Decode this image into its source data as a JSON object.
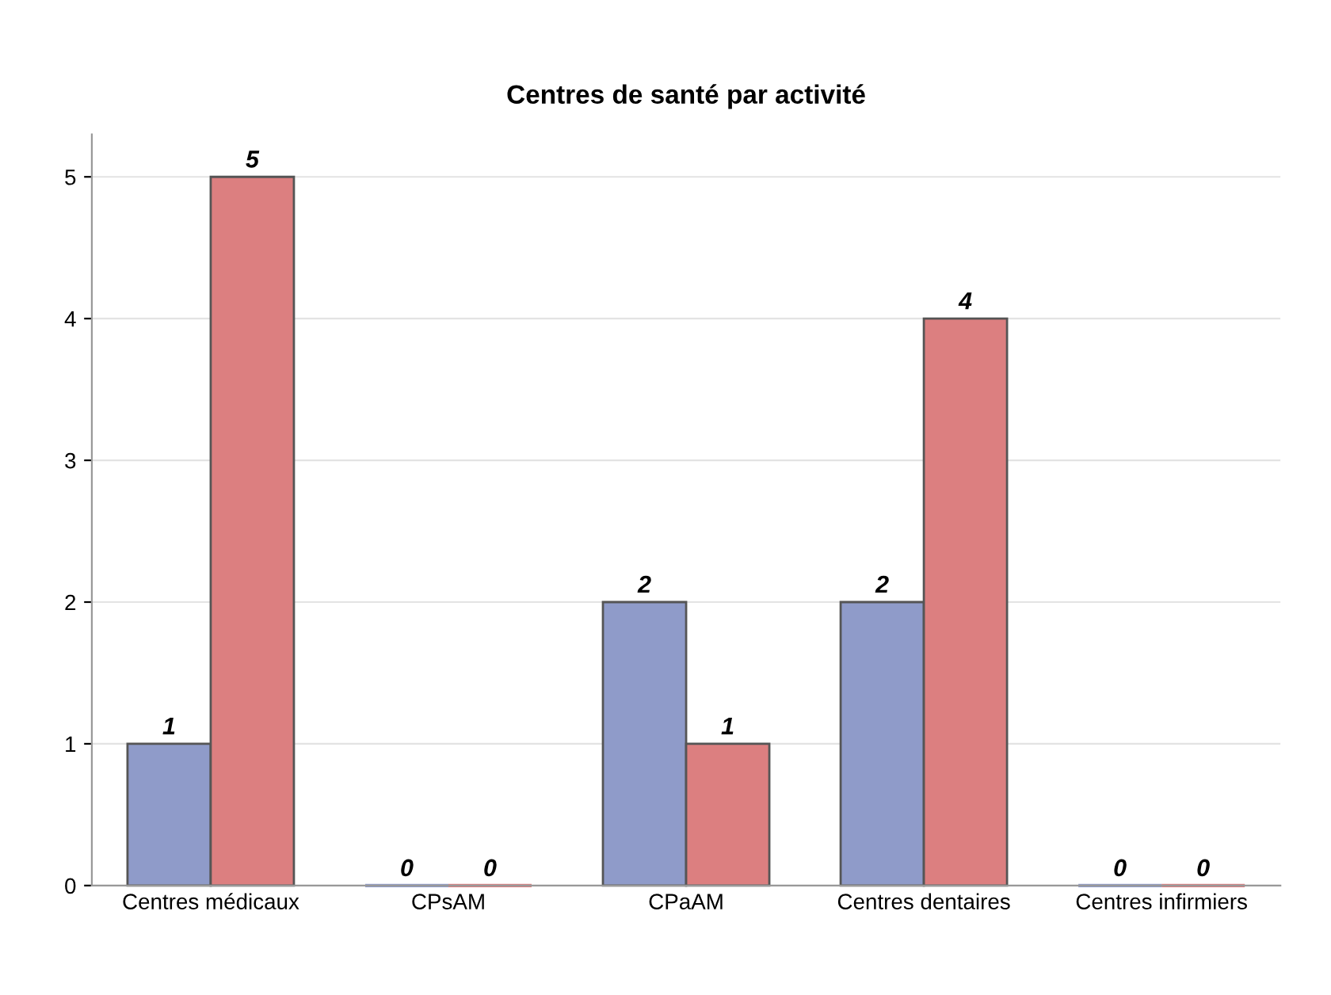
{
  "chart_data": {
    "type": "bar",
    "title": "Centres de santé par activité",
    "categories": [
      "Centres médicaux",
      "CPsAM",
      "CPaAM",
      "Centres dentaires",
      "Centres infirmiers"
    ],
    "series": [
      {
        "color": "#8f9bc9",
        "values": [
          1,
          0,
          2,
          2,
          0
        ]
      },
      {
        "color": "#dc7f80",
        "values": [
          5,
          0,
          1,
          4,
          0
        ]
      }
    ],
    "ylim": [
      0,
      5.3
    ],
    "yticks": [
      0,
      1,
      2,
      3,
      4,
      5
    ],
    "grid": "y",
    "data_labels": true
  }
}
